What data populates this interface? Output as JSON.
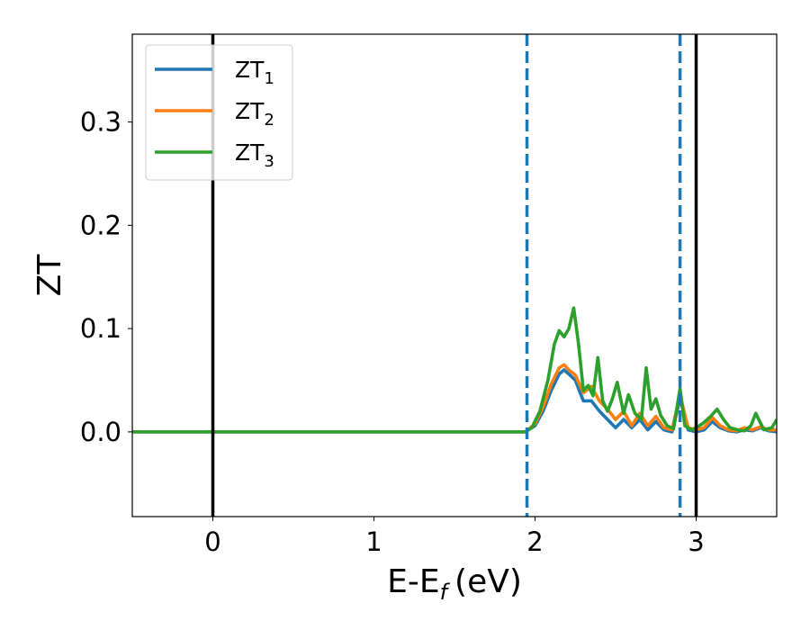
{
  "chart_data": {
    "type": "line",
    "xlabel": "E-E",
    "xlabel_sub": "f",
    "xlabel_unit": "(eV)",
    "ylabel": "ZT",
    "xlim": [
      -0.5,
      3.5
    ],
    "ylim": [
      -0.082,
      0.385
    ],
    "xticks": [
      0,
      1,
      2,
      3
    ],
    "xtick_labels": [
      "0",
      "1",
      "2",
      "3"
    ],
    "yticks": [
      0.0,
      0.1,
      0.2,
      0.3
    ],
    "ytick_labels": [
      "0.0",
      "0.1",
      "0.2",
      "0.3"
    ],
    "grid": false,
    "legend_position": "top-left",
    "vertical_lines": [
      {
        "x": 0.0,
        "style": "solid",
        "color": "#000000"
      },
      {
        "x": 3.0,
        "style": "solid",
        "color": "#000000"
      },
      {
        "x": 1.95,
        "style": "dashed",
        "color": "#1f77b4"
      },
      {
        "x": 2.9,
        "style": "dashed",
        "color": "#1f77b4"
      }
    ],
    "series": [
      {
        "name": "ZT",
        "subscript": "1",
        "color": "#1f77b4",
        "x": [
          -0.5,
          1.94,
          2.0,
          2.05,
          2.1,
          2.15,
          2.18,
          2.21,
          2.25,
          2.3,
          2.35,
          2.4,
          2.45,
          2.5,
          2.55,
          2.6,
          2.65,
          2.7,
          2.75,
          2.8,
          2.85,
          2.9,
          2.95,
          3.0,
          3.05,
          3.1,
          3.15,
          3.2,
          3.25,
          3.3,
          3.35,
          3.4,
          3.45,
          3.5
        ],
        "y": [
          0.0,
          0.0,
          0.006,
          0.02,
          0.04,
          0.056,
          0.06,
          0.056,
          0.05,
          0.03,
          0.03,
          0.02,
          0.012,
          0.004,
          0.012,
          0.004,
          0.012,
          0.002,
          0.01,
          0.002,
          0.0,
          0.032,
          0.002,
          0.0,
          0.002,
          0.01,
          0.004,
          0.001,
          0.0,
          0.002,
          0.001,
          0.004,
          0.001,
          0.0
        ]
      },
      {
        "name": "ZT",
        "subscript": "2",
        "color": "#ff7f0e",
        "x": [
          -0.5,
          1.94,
          2.0,
          2.05,
          2.1,
          2.15,
          2.18,
          2.21,
          2.25,
          2.3,
          2.35,
          2.4,
          2.45,
          2.5,
          2.55,
          2.6,
          2.65,
          2.7,
          2.75,
          2.8,
          2.85,
          2.9,
          2.95,
          3.0,
          3.05,
          3.1,
          3.15,
          3.2,
          3.25,
          3.3,
          3.35,
          3.4,
          3.45,
          3.5
        ],
        "y": [
          0.0,
          0.0,
          0.008,
          0.024,
          0.046,
          0.062,
          0.065,
          0.06,
          0.055,
          0.038,
          0.044,
          0.03,
          0.022,
          0.012,
          0.02,
          0.006,
          0.018,
          0.006,
          0.015,
          0.004,
          0.002,
          0.036,
          0.004,
          0.002,
          0.004,
          0.014,
          0.006,
          0.002,
          0.001,
          0.004,
          0.002,
          0.005,
          0.002,
          0.002
        ]
      },
      {
        "name": "ZT",
        "subscript": "3",
        "color": "#2ca02c",
        "x": [
          -0.5,
          1.94,
          1.98,
          2.03,
          2.08,
          2.12,
          2.15,
          2.18,
          2.21,
          2.24,
          2.27,
          2.3,
          2.33,
          2.36,
          2.39,
          2.42,
          2.45,
          2.48,
          2.51,
          2.55,
          2.58,
          2.62,
          2.66,
          2.69,
          2.72,
          2.75,
          2.78,
          2.82,
          2.86,
          2.9,
          2.93,
          2.97,
          3.0,
          3.04,
          3.09,
          3.13,
          3.17,
          3.21,
          3.26,
          3.3,
          3.34,
          3.37,
          3.42,
          3.47,
          3.5
        ],
        "y": [
          0.0,
          0.0,
          0.004,
          0.02,
          0.05,
          0.085,
          0.098,
          0.092,
          0.1,
          0.12,
          0.085,
          0.04,
          0.045,
          0.035,
          0.072,
          0.03,
          0.02,
          0.032,
          0.048,
          0.018,
          0.036,
          0.018,
          0.012,
          0.062,
          0.022,
          0.032,
          0.016,
          0.006,
          0.003,
          0.042,
          0.006,
          0.002,
          0.004,
          0.008,
          0.015,
          0.022,
          0.012,
          0.004,
          0.002,
          0.001,
          0.006,
          0.018,
          0.002,
          0.004,
          0.012
        ]
      }
    ]
  }
}
